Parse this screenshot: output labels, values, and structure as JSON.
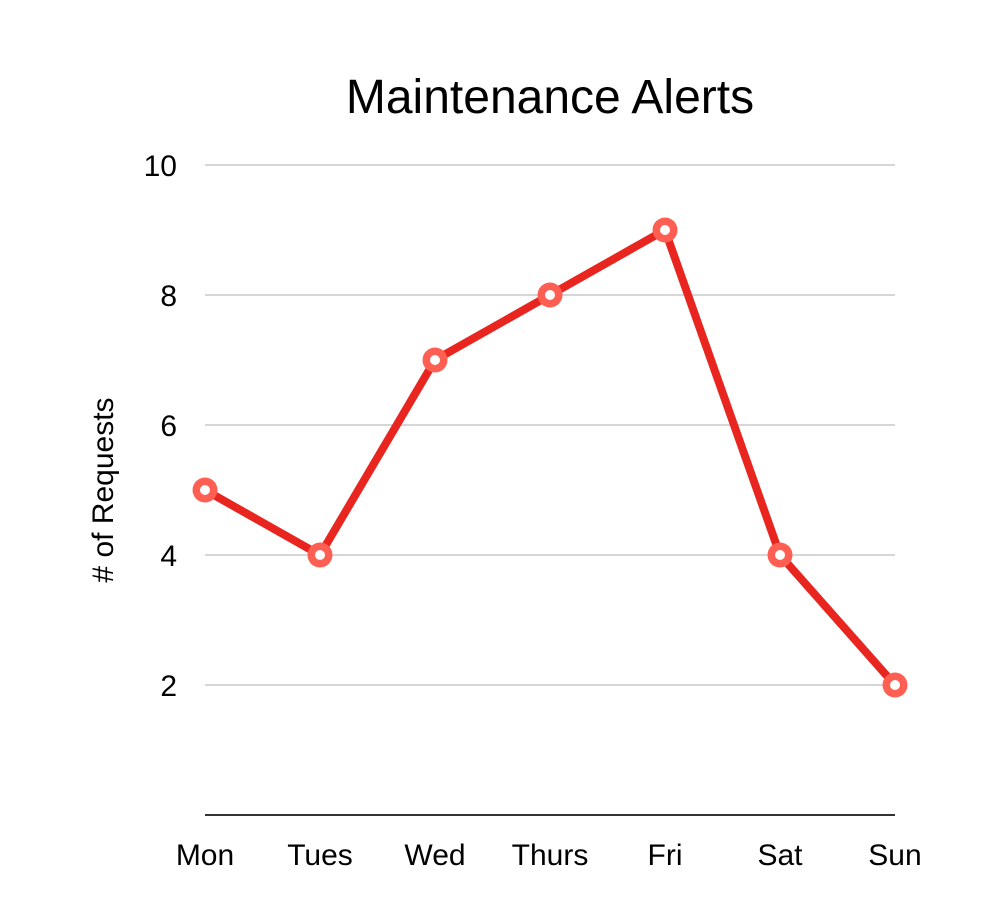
{
  "chart_data": {
    "type": "line",
    "title": "Maintenance Alerts",
    "xlabel": "",
    "ylabel": "# of Requests",
    "categories": [
      "Mon",
      "Tues",
      "Wed",
      "Thurs",
      "Fri",
      "Sat",
      "Sun"
    ],
    "series": [
      {
        "values": [
          5,
          4,
          7,
          8,
          9,
          4,
          2
        ],
        "color": "#e8251f",
        "marker_color": "#ff5f52"
      }
    ],
    "ylim": [
      0,
      10
    ],
    "yticks": [
      2,
      4,
      6,
      8,
      10
    ],
    "ytick_labels": [
      "2",
      "4",
      "6",
      "8",
      "10"
    ],
    "grid": true,
    "legend": "none",
    "colors": {
      "grid": "#c8c8c8",
      "axis": "#333333",
      "text": "#000000"
    }
  }
}
